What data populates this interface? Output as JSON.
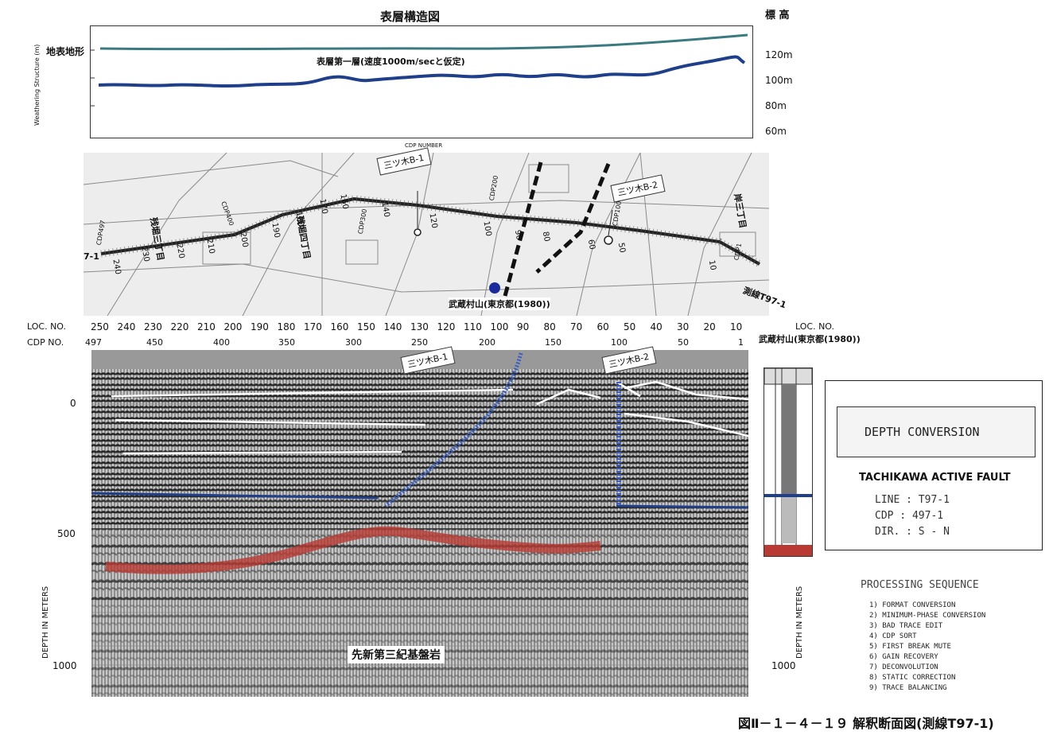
{
  "top_panel": {
    "title": "表層構造図",
    "elevation_heading": "標 高",
    "surface_label": "地表地形",
    "layer_label": "表層第一層(速度1000m/secと仮定)",
    "y_axis_label": "Weathering Structure (m)",
    "x_axis_label": "CDP NUMBER",
    "elevation_ticks": [
      "120m",
      "100m",
      "80m",
      "60m"
    ]
  },
  "map_panel": {
    "boreholes": [
      "三ツ木B-1",
      "三ツ木B-2"
    ],
    "line_label": "測線T97-1",
    "station_label": "武蔵村山(東京都(1980))",
    "line_start_label": "7-1",
    "cdp_labels": [
      "CDP497",
      "CDP400",
      "CDP300",
      "CDP200",
      "CDP100",
      "CDP1"
    ],
    "loc_labels": [
      "240",
      "230",
      "220",
      "210",
      "200",
      "190",
      "180",
      "170",
      "160",
      "140",
      "120",
      "100",
      "90",
      "80",
      "60",
      "50",
      "10"
    ],
    "place_labels": [
      "残堀三丁目",
      "残堀四丁目",
      "岸三丁目"
    ]
  },
  "section": {
    "loc_heading": "LOC. NO.",
    "cdp_heading": "CDP NO.",
    "loc_numbers": [
      "250",
      "240",
      "230",
      "220",
      "210",
      "200",
      "190",
      "180",
      "170",
      "160",
      "150",
      "140",
      "130",
      "120",
      "110",
      "100",
      "90",
      "80",
      "70",
      "60",
      "50",
      "40",
      "30",
      "20",
      "10"
    ],
    "cdp_numbers": [
      "497",
      "450",
      "400",
      "350",
      "300",
      "250",
      "200",
      "150",
      "100",
      "50",
      "1"
    ],
    "depth_ticks": [
      "0",
      "500",
      "1000"
    ],
    "depth_axis_label": "DEPTH IN METERS",
    "borehole_labels": [
      "三ツ木B-1",
      "三ツ木B-2"
    ],
    "station_label": "武蔵村山(東京都(1980))",
    "basement_label": "先新第三紀基盤岩"
  },
  "info": {
    "title": "DEPTH CONVERSION",
    "project": "TACHIKAWA ACTIVE FAULT",
    "rows": [
      {
        "key": "LINE",
        "value": "T97-1"
      },
      {
        "key": "CDP",
        "value": "497-1"
      },
      {
        "key": "DIR.",
        "value": "S - N"
      }
    ]
  },
  "processing": {
    "title": "PROCESSING SEQUENCE",
    "steps": [
      "1) FORMAT CONVERSION",
      "2) MINIMUM-PHASE CONVERSION",
      "3) BAD TRACE EDIT",
      "4) CDP SORT",
      "5) FIRST BREAK MUTE",
      "6) GAIN RECOVERY",
      "7) DECONVOLUTION",
      "8) STATIC CORRECTION",
      "9) TRACE BALANCING"
    ]
  },
  "caption": "図Ⅱ－１－４－１９ 解釈断面図(測線T97-1)",
  "colors": {
    "surface_line": "#3a7a80",
    "layer_line": "#1f3f8a",
    "basement": "#b83a32",
    "fault_blue": "#3b5fc0",
    "station_dot": "#1a2a9a"
  }
}
